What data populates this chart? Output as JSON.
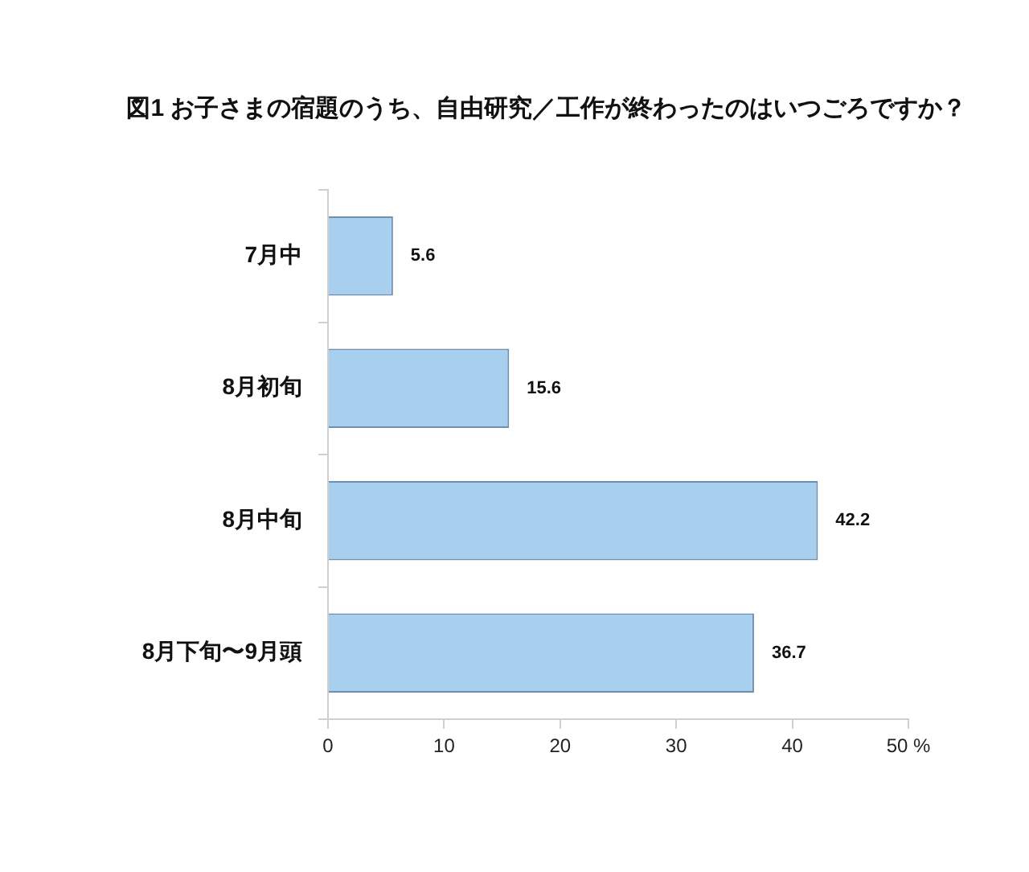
{
  "chart_data": {
    "type": "bar",
    "orientation": "horizontal",
    "title": "図1  お子さまの宿題のうち、自由研究／工作が終わったのはいつごろですか？",
    "categories": [
      "7月中",
      "8月初旬",
      "8月中旬",
      "8月下旬〜9月頭"
    ],
    "values": [
      5.6,
      15.6,
      42.2,
      36.7
    ],
    "color": "#a9cfef",
    "xlim": [
      0,
      50
    ],
    "xticks": [
      0,
      10,
      20,
      30,
      40,
      {
        "value": 50,
        "label": "50 %"
      }
    ],
    "data_labels": true
  }
}
